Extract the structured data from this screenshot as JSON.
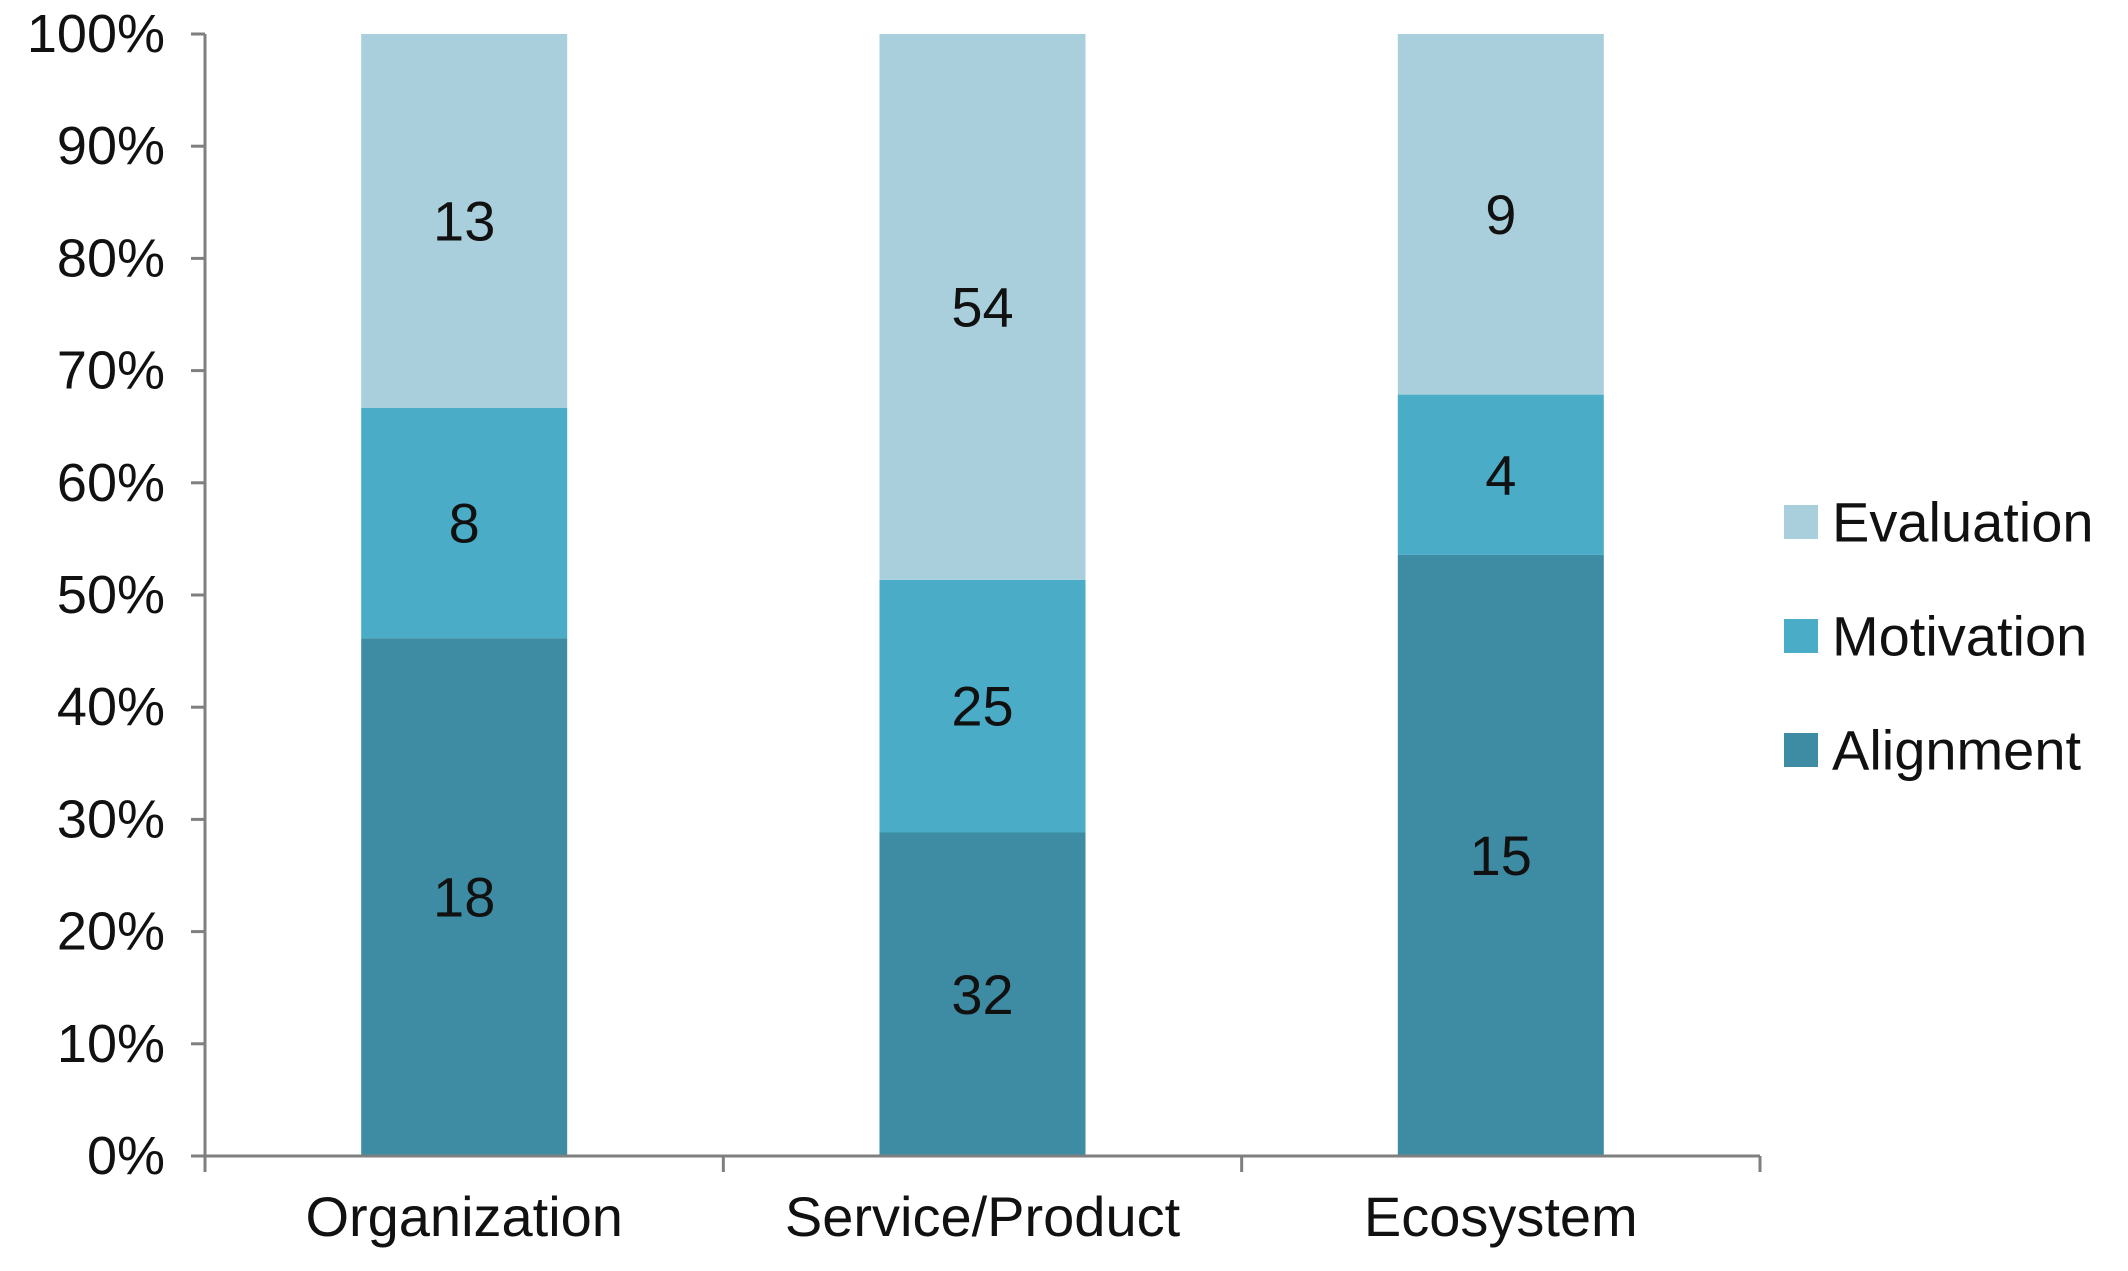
{
  "chart_data": {
    "type": "bar",
    "stacked": "percent",
    "categories": [
      "Organization",
      "Service/Product",
      "Ecosystem"
    ],
    "series": [
      {
        "name": "Alignment",
        "values": [
          18,
          32,
          15
        ],
        "color": "#3d8ca3"
      },
      {
        "name": "Motivation",
        "values": [
          8,
          25,
          4
        ],
        "color": "#4aacc6"
      },
      {
        "name": "Evaluation",
        "values": [
          13,
          54,
          9
        ],
        "color": "#a9cfdd"
      }
    ],
    "legend_order": [
      "Evaluation",
      "Motivation",
      "Alignment"
    ],
    "y_ticks": [
      "0%",
      "10%",
      "20%",
      "30%",
      "40%",
      "50%",
      "60%",
      "70%",
      "80%",
      "90%",
      "100%"
    ],
    "ylim": [
      0,
      100
    ],
    "title": "",
    "xlabel": "",
    "ylabel": "",
    "grid": false,
    "legend_position": "right",
    "axis_color": "#7f7f7f"
  }
}
